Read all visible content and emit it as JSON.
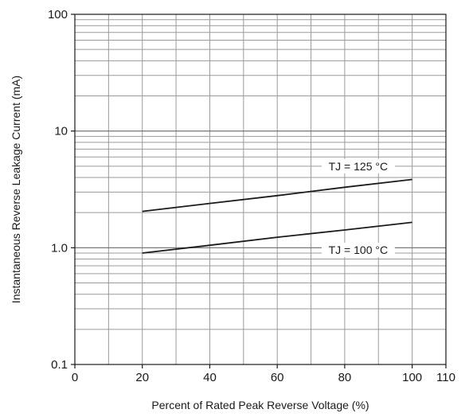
{
  "chart_data": {
    "type": "line",
    "xlabel": "Percent of Rated Peak Reverse Voltage (%)",
    "ylabel": "Instantaneous Reverse Leakage Current (mA)",
    "xlim": [
      0,
      110
    ],
    "ylim": [
      0.1,
      100
    ],
    "yscale": "log",
    "grid": true,
    "x_ticks": [
      {
        "value": 0,
        "label": "0"
      },
      {
        "value": 20,
        "label": "20"
      },
      {
        "value": 40,
        "label": "40"
      },
      {
        "value": 60,
        "label": "60"
      },
      {
        "value": 80,
        "label": "80"
      },
      {
        "value": 100,
        "label": "100"
      },
      {
        "value": 110,
        "label": "110"
      }
    ],
    "y_ticks": [
      {
        "value": 0.1,
        "label": "0.1"
      },
      {
        "value": 1,
        "label": "1.0"
      },
      {
        "value": 10,
        "label": "10"
      },
      {
        "value": 100,
        "label": "100"
      }
    ],
    "series": [
      {
        "name": "TJ = 125 °C",
        "x": [
          20,
          40,
          60,
          80,
          100
        ],
        "y": [
          2.05,
          2.4,
          2.8,
          3.3,
          3.85
        ],
        "label_at": [
          84,
          5.0
        ]
      },
      {
        "name": "TJ = 100 °C",
        "x": [
          20,
          40,
          60,
          80,
          100
        ],
        "y": [
          0.9,
          1.05,
          1.23,
          1.42,
          1.65
        ],
        "label_at": [
          84,
          0.96
        ]
      }
    ]
  }
}
